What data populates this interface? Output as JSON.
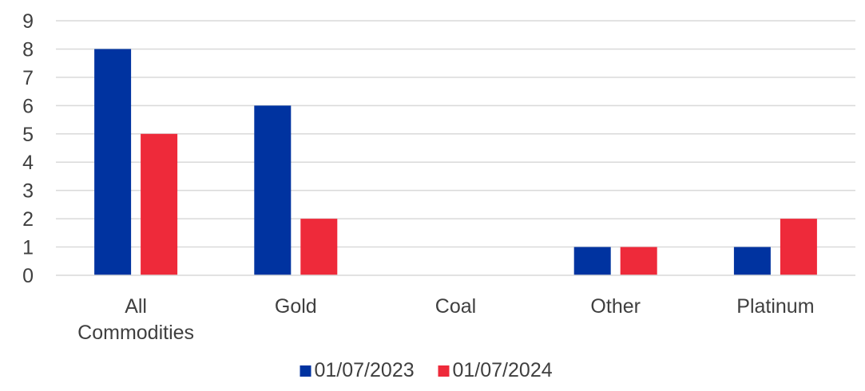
{
  "chart_data": {
    "type": "bar",
    "categories": [
      "All Commodities",
      "Gold",
      "Coal",
      "Other",
      "Platinum"
    ],
    "category_lines": [
      [
        "All",
        "Commodities"
      ],
      [
        "Gold"
      ],
      [
        "Coal"
      ],
      [
        "Other"
      ],
      [
        "Platinum"
      ]
    ],
    "series": [
      {
        "name": "01/07/2023",
        "color": "#0033A0",
        "values": [
          8,
          6,
          0,
          1,
          1
        ]
      },
      {
        "name": "01/07/2024",
        "color": "#EE2A3A",
        "values": [
          5,
          2,
          0,
          1,
          2
        ]
      }
    ],
    "y_ticks": [
      "0",
      "1",
      "2",
      "3",
      "4",
      "5",
      "6",
      "7",
      "8",
      "9"
    ],
    "ylim": [
      0,
      9
    ],
    "grid": true,
    "gridline_color": "#d9d9d9",
    "axis_color": "#d9d9d9",
    "legend_position": "bottom",
    "title": "",
    "xlabel": "",
    "ylabel": ""
  }
}
